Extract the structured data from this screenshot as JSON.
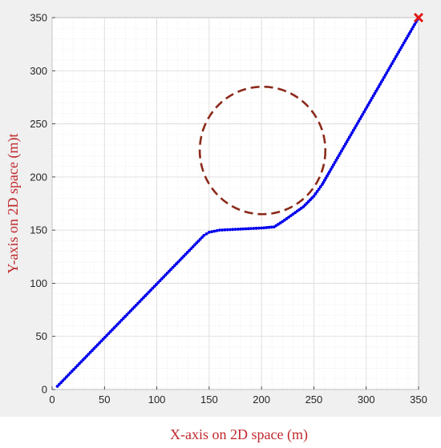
{
  "chart_data": {
    "type": "scatter",
    "title": "",
    "xlabel": "X-axis on 2D space (m)",
    "ylabel": "Y-axis on 2D space (m)t",
    "xlim": [
      0,
      350
    ],
    "ylim": [
      0,
      350
    ],
    "xticks": [
      0,
      50,
      100,
      150,
      200,
      250,
      300,
      350
    ],
    "yticks": [
      0,
      50,
      100,
      150,
      200,
      250,
      300,
      350
    ],
    "minor_grid_step": 10,
    "grid": true,
    "legend": "none",
    "colors": {
      "background": "#f0f0f0",
      "plot_area": "#ffffff",
      "grid": "#d9d9d9",
      "minor_grid": "#e6e6e6",
      "path": "#0000ee",
      "obstacle": "#8b2a1a",
      "goal": "#e31414",
      "axis_title": "#c0282c"
    },
    "obstacle": {
      "shape": "circle",
      "center": [
        201,
        225
      ],
      "radius": 60
    },
    "goal": {
      "x": 350,
      "y": 350,
      "marker": "x"
    },
    "path_points": [
      [
        5,
        3
      ],
      [
        145,
        145
      ],
      [
        150,
        148
      ],
      [
        160,
        150
      ],
      [
        180,
        151
      ],
      [
        200,
        152
      ],
      [
        212,
        153
      ],
      [
        220,
        158
      ],
      [
        230,
        165
      ],
      [
        240,
        172
      ],
      [
        250,
        182
      ],
      [
        258,
        193
      ],
      [
        265,
        205
      ],
      [
        350,
        350
      ]
    ]
  }
}
